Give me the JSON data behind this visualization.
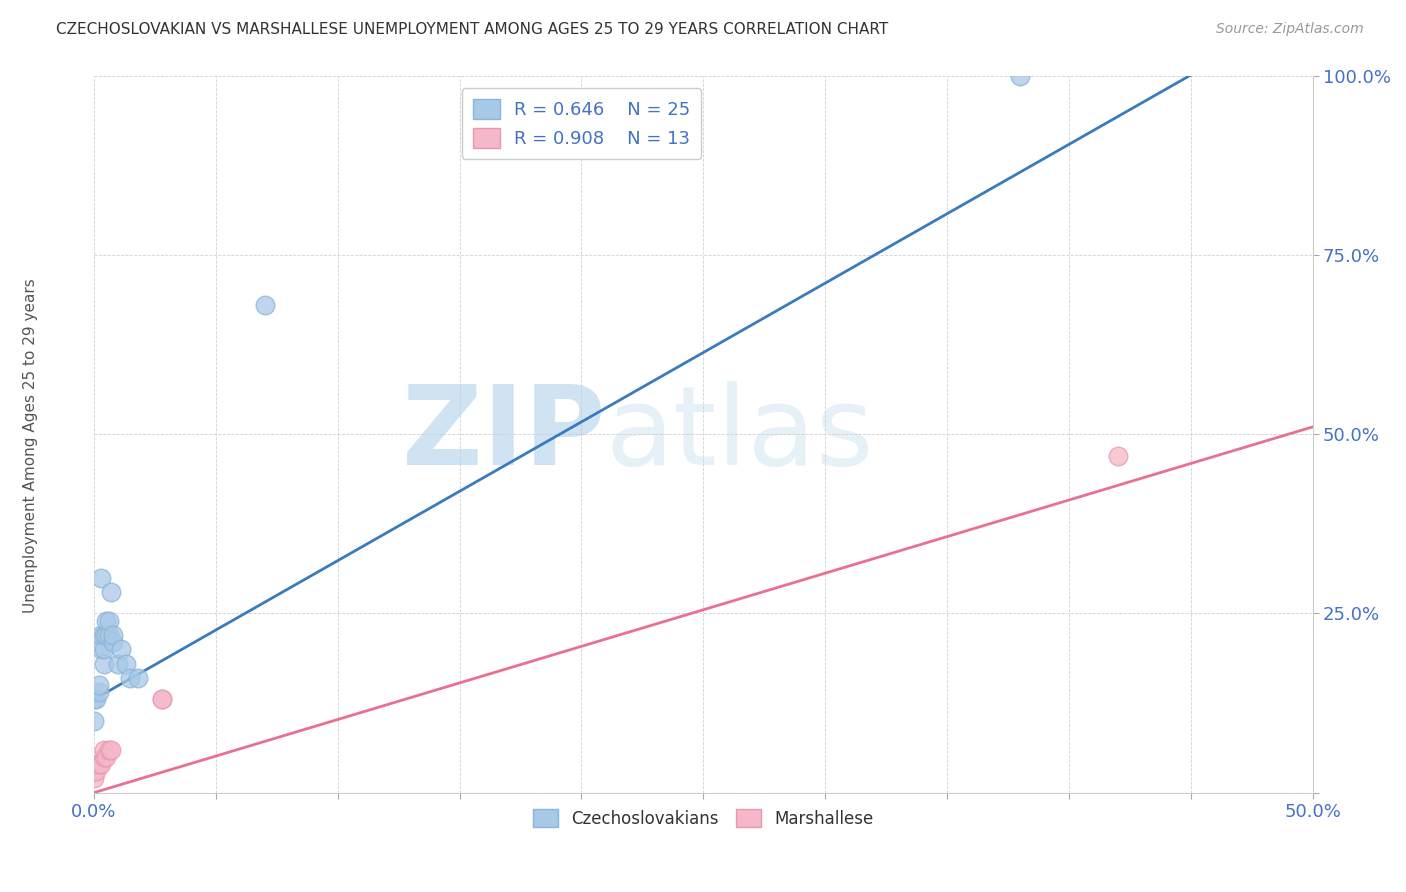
{
  "title": "CZECHOSLOVAKIAN VS MARSHALLESE UNEMPLOYMENT AMONG AGES 25 TO 29 YEARS CORRELATION CHART",
  "source": "Source: ZipAtlas.com",
  "ylabel": "Unemployment Among Ages 25 to 29 years",
  "xlim": [
    0,
    0.5
  ],
  "ylim": [
    0,
    1.0
  ],
  "xtick_positions": [
    0.0,
    0.05,
    0.1,
    0.15,
    0.2,
    0.25,
    0.3,
    0.35,
    0.4,
    0.45,
    0.5
  ],
  "ytick_positions": [
    0.0,
    0.25,
    0.5,
    0.75,
    1.0
  ],
  "yticklabels": [
    "",
    "25.0%",
    "50.0%",
    "75.0%",
    "100.0%"
  ],
  "blue_color": "#a8c8e8",
  "pink_color": "#f4b8c8",
  "blue_line_color": "#3a7abf",
  "pink_line_color": "#e87090",
  "text_color": "#4472c4",
  "legend_r_blue": "R = 0.646",
  "legend_n_blue": "N = 25",
  "legend_r_pink": "R = 0.908",
  "legend_n_pink": "N = 13",
  "watermark_zip": "ZIP",
  "watermark_atlas": "atlas",
  "blue_points_x": [
    0.0,
    0.0,
    0.001,
    0.002,
    0.002,
    0.003,
    0.003,
    0.003,
    0.004,
    0.004,
    0.004,
    0.005,
    0.005,
    0.006,
    0.006,
    0.007,
    0.008,
    0.008,
    0.01,
    0.011,
    0.013,
    0.015,
    0.018,
    0.38,
    0.07
  ],
  "blue_points_y": [
    0.1,
    0.13,
    0.13,
    0.14,
    0.15,
    0.2,
    0.22,
    0.3,
    0.18,
    0.2,
    0.22,
    0.22,
    0.24,
    0.22,
    0.24,
    0.28,
    0.21,
    0.22,
    0.18,
    0.2,
    0.18,
    0.16,
    0.16,
    1.0,
    0.68
  ],
  "pink_points_x": [
    0.0,
    0.0,
    0.001,
    0.002,
    0.003,
    0.004,
    0.004,
    0.005,
    0.006,
    0.007,
    0.028,
    0.028,
    0.42
  ],
  "pink_points_y": [
    0.02,
    0.03,
    0.03,
    0.04,
    0.04,
    0.05,
    0.06,
    0.05,
    0.06,
    0.06,
    0.13,
    0.13,
    0.47
  ],
  "blue_line_x": [
    0.0,
    0.46
  ],
  "blue_line_y": [
    0.13,
    1.02
  ],
  "pink_line_x": [
    0.0,
    0.5
  ],
  "pink_line_y": [
    0.0,
    0.51
  ]
}
